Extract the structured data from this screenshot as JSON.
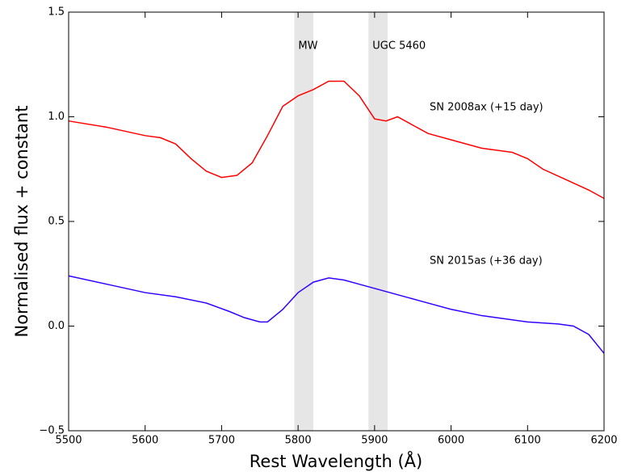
{
  "chart_data": {
    "type": "line",
    "xlabel": "Rest Wavelength (Å)",
    "ylabel": "Normalised flux + constant",
    "xlim": [
      5500,
      6200
    ],
    "ylim": [
      -0.5,
      1.5
    ],
    "xticks": [
      5500,
      5600,
      5700,
      5800,
      5900,
      6000,
      6100,
      6200
    ],
    "yticks": [
      {
        "value": -0.5,
        "label": "−0.5"
      },
      {
        "value": 0,
        "label": "0.0"
      },
      0.5,
      {
        "value": 1,
        "label": "1.0"
      },
      1.5
    ],
    "bands": [
      {
        "label": "MW",
        "range": [
          5795,
          5820
        ],
        "color": "#e6e6e6"
      },
      {
        "label": "UGC 5460",
        "range": [
          5892,
          5917
        ],
        "color": "#e6e6e6"
      }
    ],
    "series": [
      {
        "name": "SN 2008ax (+15 day)",
        "color": "#ff0000",
        "x": [
          5500,
          5550,
          5600,
          5620,
          5640,
          5660,
          5680,
          5700,
          5720,
          5740,
          5760,
          5780,
          5800,
          5820,
          5840,
          5860,
          5880,
          5900,
          5915,
          5930,
          5950,
          5970,
          6000,
          6040,
          6080,
          6100,
          6120,
          6150,
          6180,
          6200
        ],
        "values": [
          0.98,
          0.95,
          0.91,
          0.9,
          0.87,
          0.8,
          0.74,
          0.71,
          0.72,
          0.78,
          0.91,
          1.05,
          1.1,
          1.13,
          1.17,
          1.17,
          1.1,
          0.99,
          0.98,
          1.0,
          0.96,
          0.92,
          0.89,
          0.85,
          0.83,
          0.8,
          0.75,
          0.7,
          0.65,
          0.61
        ]
      },
      {
        "name": "SN 2015as (+36 day)",
        "color": "#3300ff",
        "x": [
          5500,
          5550,
          5600,
          5640,
          5680,
          5710,
          5730,
          5750,
          5760,
          5780,
          5800,
          5820,
          5840,
          5860,
          5880,
          5920,
          5960,
          6000,
          6040,
          6080,
          6100,
          6140,
          6160,
          6180,
          6200
        ],
        "values": [
          0.24,
          0.2,
          0.16,
          0.14,
          0.11,
          0.07,
          0.04,
          0.02,
          0.02,
          0.08,
          0.16,
          0.21,
          0.23,
          0.22,
          0.2,
          0.16,
          0.12,
          0.08,
          0.05,
          0.03,
          0.02,
          0.01,
          0.0,
          -0.04,
          -0.13
        ]
      }
    ]
  }
}
